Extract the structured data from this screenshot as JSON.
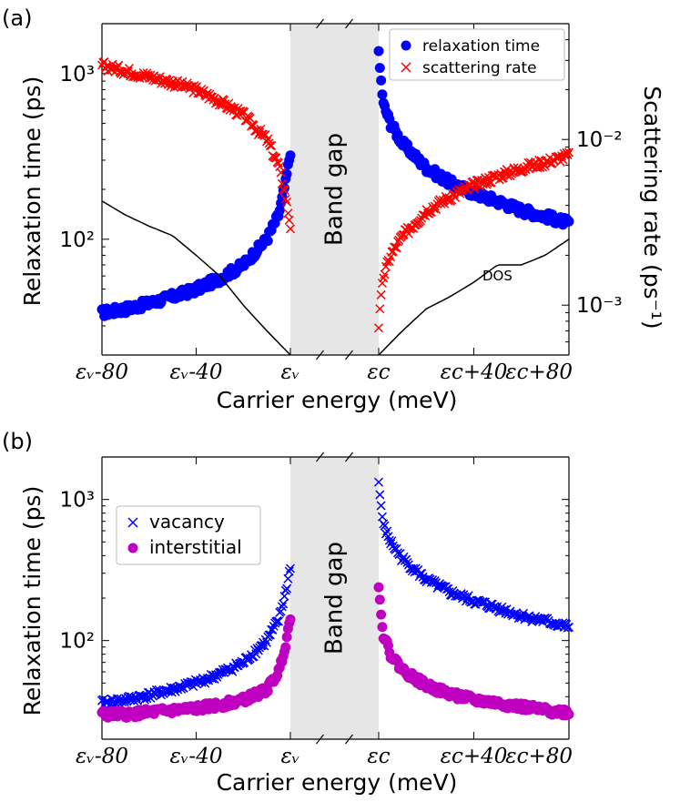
{
  "panels": [
    {
      "id": "a",
      "panel_label": "(a)",
      "ylabel": "Relaxation time (ps)",
      "y2label": "Scattering rate (ps⁻¹)",
      "xlabel": "Carrier energy (meV)",
      "band_gap_label": "Band gap",
      "dos_label": "DOS",
      "yticks": [
        {
          "value": 100,
          "label": "10²"
        },
        {
          "value": 1000,
          "label": "10³"
        }
      ],
      "y2ticks": [
        {
          "value": 0.001,
          "label": "10⁻³"
        },
        {
          "value": 0.01,
          "label": "10⁻²"
        }
      ],
      "xticks_left": [
        {
          "value": -80,
          "label": "εᵥ-80"
        },
        {
          "value": -40,
          "label": "εᵥ-40"
        },
        {
          "value": 0,
          "label": "εᵥ"
        }
      ],
      "xticks_right": [
        {
          "value": 0,
          "label": "εc"
        },
        {
          "value": 40,
          "label": "εc+40"
        },
        {
          "value": 80,
          "label": "εc+80"
        }
      ],
      "legend": [
        {
          "name": "relaxation time",
          "marker": "circle",
          "color": "#0000ff"
        },
        {
          "name": "scattering rate",
          "marker": "x",
          "color": "#ff0000"
        }
      ]
    },
    {
      "id": "b",
      "panel_label": "(b)",
      "ylabel": "Relaxation time (ps)",
      "xlabel": "Carrier energy (meV)",
      "band_gap_label": "Band gap",
      "yticks": [
        {
          "value": 100,
          "label": "10²"
        },
        {
          "value": 1000,
          "label": "10³"
        }
      ],
      "xticks_left": [
        {
          "value": -80,
          "label": "εᵥ-80"
        },
        {
          "value": -40,
          "label": "εᵥ-40"
        },
        {
          "value": 0,
          "label": "εᵥ"
        }
      ],
      "xticks_right": [
        {
          "value": 0,
          "label": "εc"
        },
        {
          "value": 40,
          "label": "εc+40"
        },
        {
          "value": 80,
          "label": "εc+80"
        }
      ],
      "legend": [
        {
          "name": "vacancy",
          "marker": "x",
          "color": "#0000ff"
        },
        {
          "name": "interstitial",
          "marker": "circle",
          "color": "#c000c0"
        }
      ]
    }
  ],
  "chart_data": [
    {
      "type": "scatter",
      "panel": "(a)",
      "xlabel": "Carrier energy (meV)",
      "ylabel": "Relaxation time (ps)",
      "y2label": "Scattering rate (ps⁻¹)",
      "yscale": "log",
      "ylim": [
        20,
        2000
      ],
      "y2lim": [
        0.0005,
        0.05
      ],
      "x_segments": [
        "valence band: εv-80 to εv",
        "conduction band: εc to εc+80"
      ],
      "grid": false,
      "legend_position": "top-right",
      "series": [
        {
          "name": "relaxation time",
          "axis": "left",
          "marker": "circle",
          "color": "#0000ff",
          "valence": {
            "x": [
              -80,
              -70,
              -60,
              -50,
              -40,
              -30,
              -20,
              -10,
              -5,
              -2,
              0
            ],
            "y": [
              36,
              38,
              41,
              45,
              50,
              58,
              70,
              100,
              140,
              220,
              340
            ]
          },
          "conduction": {
            "x": [
              0,
              1,
              2,
              5,
              10,
              20,
              30,
              40,
              50,
              60,
              70,
              80
            ],
            "y": [
              1300,
              900,
              650,
              500,
              380,
              270,
              220,
              190,
              170,
              150,
              138,
              125
            ]
          }
        },
        {
          "name": "scattering rate",
          "axis": "right",
          "marker": "x",
          "color": "#ff0000",
          "valence": {
            "x": [
              -80,
              -70,
              -60,
              -50,
              -40,
              -30,
              -20,
              -10,
              -5,
              -2,
              0
            ],
            "y": [
              0.028,
              0.026,
              0.024,
              0.022,
              0.02,
              0.017,
              0.014,
              0.01,
              0.007,
              0.0045,
              0.003
            ]
          },
          "conduction": {
            "x": [
              0,
              1,
              2,
              5,
              10,
              20,
              30,
              40,
              50,
              60,
              70,
              80
            ],
            "y": [
              0.00075,
              0.0011,
              0.0015,
              0.002,
              0.0026,
              0.0037,
              0.0045,
              0.0053,
              0.006,
              0.0067,
              0.0073,
              0.008
            ]
          }
        },
        {
          "name": "DOS",
          "type": "line",
          "color": "#000000",
          "valence": {
            "x": [
              -80,
              -70,
              -60,
              -50,
              -40,
              -30,
              -20,
              -10,
              0
            ],
            "y": [
              170,
              140,
              120,
              105,
              80,
              60,
              40,
              28,
              20
            ]
          },
          "conduction": {
            "x": [
              0,
              10,
              20,
              30,
              40,
              50,
              60,
              70,
              80
            ],
            "y": [
              20,
              28,
              38,
              45,
              55,
              70,
              70,
              80,
              100
            ]
          }
        }
      ]
    },
    {
      "type": "scatter",
      "panel": "(b)",
      "xlabel": "Carrier energy (meV)",
      "ylabel": "Relaxation time (ps)",
      "yscale": "log",
      "ylim": [
        20,
        2000
      ],
      "grid": false,
      "legend_position": "top-left",
      "series": [
        {
          "name": "vacancy",
          "marker": "x",
          "color": "#0000ff",
          "valence": {
            "x": [
              -80,
              -70,
              -60,
              -50,
              -40,
              -30,
              -20,
              -10,
              -5,
              -2,
              0
            ],
            "y": [
              36,
              38,
              41,
              45,
              50,
              58,
              70,
              100,
              140,
              220,
              340
            ]
          },
          "conduction": {
            "x": [
              0,
              1,
              2,
              5,
              10,
              20,
              30,
              40,
              50,
              60,
              70,
              80
            ],
            "y": [
              1300,
              900,
              650,
              500,
              380,
              270,
              220,
              190,
              170,
              150,
              138,
              125
            ]
          }
        },
        {
          "name": "interstitial",
          "marker": "circle",
          "color": "#c000c0",
          "valence": {
            "x": [
              -80,
              -70,
              -60,
              -50,
              -40,
              -30,
              -20,
              -10,
              -5,
              -2,
              0
            ],
            "y": [
              30,
              30,
              31,
              32,
              33,
              35,
              38,
              45,
              60,
              95,
              150
            ]
          },
          "conduction": {
            "x": [
              0,
              1,
              2,
              5,
              10,
              20,
              30,
              40,
              50,
              60,
              70,
              80
            ],
            "y": [
              230,
              160,
              110,
              80,
              62,
              48,
              42,
              38,
              36,
              34,
              32,
              31
            ]
          }
        }
      ]
    }
  ]
}
